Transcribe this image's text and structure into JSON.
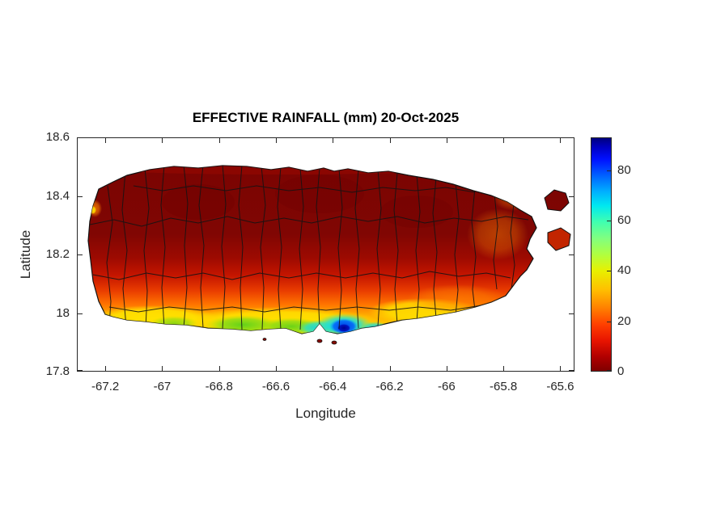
{
  "figure": {
    "title": "EFFECTIVE RAINFALL (mm) 20-Oct-2025",
    "xlabel": "Longitude",
    "ylabel": "Latitude"
  },
  "chart_data": {
    "type": "heatmap",
    "title": "EFFECTIVE RAINFALL (mm) 20-Oct-2025",
    "xlabel": "Longitude",
    "ylabel": "Latitude",
    "xlim": [
      -67.3,
      -65.55
    ],
    "ylim": [
      17.8,
      18.6
    ],
    "x_ticks": [
      -67.2,
      -67,
      -66.8,
      -66.6,
      -66.4,
      -66.2,
      -66,
      -65.8,
      -65.6
    ],
    "x_tick_labels": [
      "-67.2",
      "-67",
      "-66.8",
      "-66.6",
      "-66.4",
      "-66.2",
      "-66",
      "-65.8",
      "-65.6"
    ],
    "y_ticks": [
      17.8,
      18,
      18.2,
      18.4,
      18.6
    ],
    "y_tick_labels": [
      "17.8",
      "18",
      "18.2",
      "18.4",
      "18.6"
    ],
    "grid": false,
    "legend": "colorbar right",
    "colormap": "jet reversed (0 = dark red, max = dark blue)",
    "colorbar": {
      "position": "right",
      "range": [
        0,
        93
      ],
      "ticks": [
        0,
        20,
        40,
        60,
        80
      ],
      "tick_labels": [
        "0",
        "20",
        "40",
        "60",
        "80"
      ]
    },
    "region": "Puerto Rico island with municipality boundaries drawn in black",
    "values_summary": [
      {
        "area": "northern and central interior (lat > 18.1)",
        "rainfall_mm": "0-8",
        "color": "dark red"
      },
      {
        "area": "mid-southern band (lat 18.0-18.1)",
        "rainfall_mm": "10-25",
        "color": "red to orange"
      },
      {
        "area": "southern coastal strip (lat 17.95-18.0)",
        "rainfall_mm": "30-45",
        "color": "yellow"
      },
      {
        "area": "south-central coast lon -66.8 to -66.2",
        "rainfall_mm": "45-65",
        "color": "green to cyan"
      },
      {
        "area": "hotspot near lon -66.4 lat 17.97",
        "rainfall_mm": "75-90",
        "color": "blue to dark blue"
      },
      {
        "area": "east coast and northeast islets",
        "rainfall_mm": "5-20",
        "color": "red-orange patches"
      }
    ]
  }
}
